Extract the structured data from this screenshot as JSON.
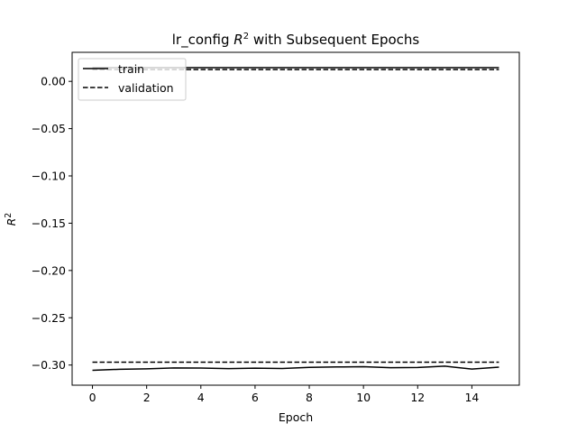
{
  "chart_data": {
    "type": "line",
    "title_prefix": "lr_config ",
    "title_var": "R",
    "title_sup": "2",
    "title_suffix": " with Subsequent Epochs",
    "xlabel": "Epoch",
    "ylabel_var": "R",
    "ylabel_sup": "2",
    "xlim": [
      -0.75,
      15.75
    ],
    "ylim": [
      -0.3213,
      0.0307
    ],
    "xticks": [
      0,
      2,
      4,
      6,
      8,
      10,
      12,
      14
    ],
    "xtick_labels": [
      "0",
      "2",
      "4",
      "6",
      "8",
      "10",
      "12",
      "14"
    ],
    "yticks": [
      0.0,
      -0.05,
      -0.1,
      -0.15,
      -0.2,
      -0.25,
      -0.3
    ],
    "ytick_labels": [
      "0.00",
      "−0.05",
      "−0.10",
      "−0.15",
      "−0.20",
      "−0.25",
      "−0.30"
    ],
    "grid": false,
    "legend_position": "top-left",
    "legend": [
      {
        "label": "train",
        "style": "solid"
      },
      {
        "label": "validation",
        "style": "dashed"
      }
    ],
    "x": [
      0,
      1,
      2,
      3,
      4,
      5,
      6,
      7,
      8,
      9,
      10,
      11,
      12,
      13,
      14,
      15
    ],
    "series": [
      {
        "name": "train",
        "style": "solid",
        "color": "#000000",
        "values": [
          0.0145,
          0.0145,
          0.0145,
          0.0145,
          0.0145,
          0.0145,
          0.0145,
          0.0145,
          0.0145,
          0.0145,
          0.0145,
          0.0145,
          0.0145,
          0.0145,
          0.0145,
          0.0145
        ]
      },
      {
        "name": "validation",
        "style": "dashed",
        "color": "#000000",
        "values": [
          0.0125,
          0.0125,
          0.0125,
          0.0125,
          0.0125,
          0.0125,
          0.0125,
          0.0125,
          0.0125,
          0.0125,
          0.0125,
          0.0125,
          0.0125,
          0.0125,
          0.0125,
          0.0125
        ]
      },
      {
        "name": "train",
        "style": "solid",
        "color": "#000000",
        "values": [
          -0.3055,
          -0.3045,
          -0.304,
          -0.303,
          -0.3032,
          -0.3038,
          -0.3033,
          -0.3036,
          -0.3025,
          -0.302,
          -0.3018,
          -0.3028,
          -0.3026,
          -0.3012,
          -0.3042,
          -0.3022
        ]
      },
      {
        "name": "validation",
        "style": "dashed",
        "color": "#000000",
        "values": [
          -0.297,
          -0.297,
          -0.297,
          -0.297,
          -0.297,
          -0.297,
          -0.297,
          -0.297,
          -0.297,
          -0.297,
          -0.297,
          -0.297,
          -0.297,
          -0.297,
          -0.297,
          -0.297
        ]
      }
    ]
  }
}
